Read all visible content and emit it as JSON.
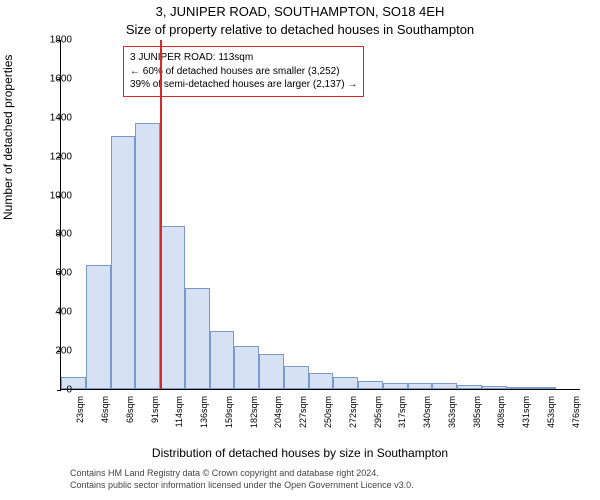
{
  "title_line1": "3, JUNIPER ROAD, SOUTHAMPTON, SO18 4EH",
  "title_line2": "Size of property relative to detached houses in Southampton",
  "y_axis_label": "Number of detached properties",
  "x_axis_label": "Distribution of detached houses by size in Southampton",
  "footnote_line1": "Contains HM Land Registry data © Crown copyright and database right 2024.",
  "footnote_line2": "Contains public sector information licensed under the Open Government Licence v3.0.",
  "chart": {
    "type": "histogram",
    "ylim": [
      0,
      1800
    ],
    "yticks": [
      0,
      200,
      400,
      600,
      800,
      1000,
      1200,
      1400,
      1600,
      1800
    ],
    "background_color": "#ffffff",
    "bar_fill": "#d6e2f3",
    "bar_border": "#7a9bc9",
    "reference_line": {
      "x_index": 4,
      "color": "#d42a2a",
      "label": "113sqm"
    },
    "categories": [
      "23sqm",
      "46sqm",
      "68sqm",
      "91sqm",
      "114sqm",
      "136sqm",
      "159sqm",
      "182sqm",
      "204sqm",
      "227sqm",
      "250sqm",
      "272sqm",
      "295sqm",
      "317sqm",
      "340sqm",
      "363sqm",
      "385sqm",
      "408sqm",
      "431sqm",
      "453sqm",
      "476sqm"
    ],
    "values": [
      60,
      640,
      1300,
      1370,
      840,
      520,
      300,
      220,
      180,
      120,
      80,
      60,
      40,
      30,
      30,
      30,
      20,
      15,
      10,
      8,
      0
    ]
  },
  "callout": {
    "border_color": "#d42a2a",
    "line1": "3 JUNIPER ROAD: 113sqm",
    "line2": "← 60% of detached houses are smaller (3,252)",
    "line3": "39% of semi-detached houses are larger (2,137) →"
  }
}
